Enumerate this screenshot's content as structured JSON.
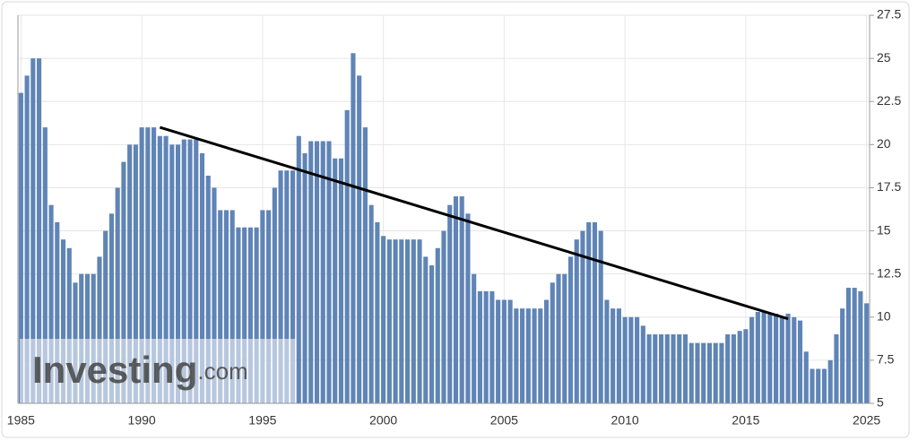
{
  "chart_data": {
    "type": "bar",
    "categories": [
      "1985",
      null,
      null,
      null,
      null,
      null,
      null,
      null,
      null,
      null,
      null,
      null,
      null,
      null,
      null,
      null,
      null,
      null,
      null,
      null,
      "1990",
      null,
      null,
      null,
      null,
      null,
      null,
      null,
      null,
      null,
      null,
      null,
      null,
      null,
      null,
      null,
      null,
      null,
      null,
      null,
      "1995",
      null,
      null,
      null,
      null,
      null,
      null,
      null,
      null,
      null,
      null,
      null,
      null,
      null,
      null,
      null,
      null,
      null,
      null,
      null,
      "2000",
      null,
      null,
      null,
      null,
      null,
      null,
      null,
      null,
      null,
      null,
      null,
      null,
      null,
      null,
      null,
      null,
      null,
      null,
      null,
      "2005",
      null,
      null,
      null,
      null,
      null,
      null,
      null,
      null,
      null,
      null,
      null,
      null,
      null,
      null,
      null,
      null,
      null,
      null,
      null,
      "2010",
      null,
      null,
      null,
      null,
      null,
      null,
      null,
      null,
      null,
      null,
      null,
      null,
      null,
      null,
      null,
      null,
      null,
      null,
      null,
      "2015",
      null,
      null,
      null,
      null,
      null,
      null,
      null,
      null,
      null,
      null,
      null,
      null,
      null,
      null,
      null,
      null,
      null,
      null,
      null,
      "2025"
    ],
    "values": [
      23,
      24,
      25,
      25,
      21,
      16.5,
      15.5,
      14.5,
      14,
      12,
      12.5,
      12.5,
      12.5,
      13.5,
      15,
      16,
      17.5,
      19,
      20,
      20,
      21,
      21,
      21,
      20.5,
      20.5,
      20,
      20,
      20.3,
      20.3,
      20.3,
      19.5,
      18.2,
      17.5,
      16.2,
      16.2,
      16.2,
      15.2,
      15.2,
      15.2,
      15.2,
      16.2,
      16.2,
      17.5,
      18.5,
      18.5,
      18.5,
      20.5,
      19.5,
      20.2,
      20.2,
      20.2,
      20.2,
      19.2,
      19.2,
      22,
      25.3,
      24,
      21,
      16.5,
      15.5,
      14.7,
      14.5,
      14.5,
      14.5,
      14.5,
      14.5,
      14.5,
      13.5,
      13,
      14,
      15,
      16.5,
      17,
      17,
      16,
      12.5,
      11.5,
      11.5,
      11.5,
      11,
      11,
      11,
      10.5,
      10.5,
      10.5,
      10.5,
      10.5,
      11,
      12,
      12.5,
      12.5,
      13.5,
      14.5,
      15,
      15.5,
      15.5,
      15,
      11,
      10.5,
      10.5,
      10,
      10,
      10,
      9.5,
      9,
      9,
      9,
      9,
      9,
      9,
      9,
      8.5,
      8.5,
      8.5,
      8.5,
      8.5,
      8.5,
      9,
      9,
      9.2,
      9.3,
      10,
      10.3,
      10.3,
      10.2,
      10.2,
      10,
      10.2,
      10,
      9.8,
      8,
      7,
      7,
      7,
      7.5,
      9,
      10.5,
      11.7,
      11.7,
      11.5,
      10.8
    ],
    "color": "#5f84b6",
    "ylim": [
      5,
      27.5
    ],
    "yticks": [
      5,
      7.5,
      10,
      12.5,
      15,
      17.5,
      20,
      22.5,
      25,
      27.5
    ],
    "grid": true,
    "trend_line": {
      "from": [
        23,
        21
      ],
      "to": [
        127,
        9.9
      ],
      "color": "#000000"
    },
    "watermark": {
      "brand": "Investing",
      "suffix": ".com"
    }
  }
}
